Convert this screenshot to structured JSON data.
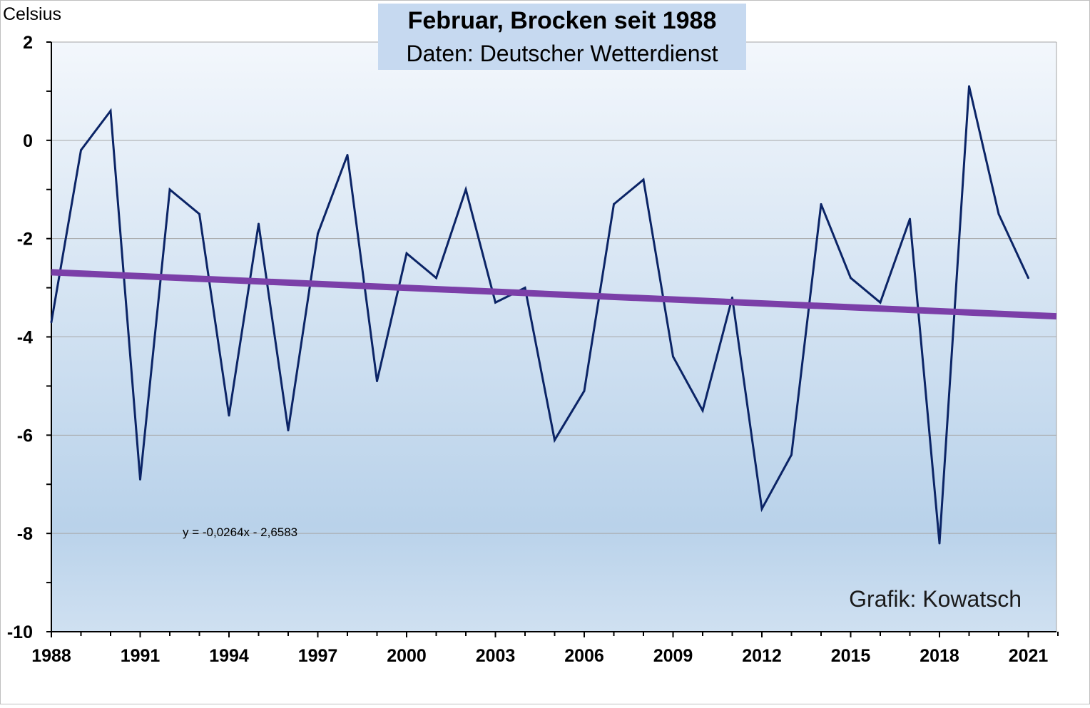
{
  "chart_data": {
    "type": "line",
    "title": "Februar, Brocken seit 1988",
    "subtitle": "Daten: Deutscher Wetterdienst",
    "ylabel": "Celsius",
    "xlabel": "",
    "credit": "Grafik: Kowatsch",
    "x_tick_labels": [
      "1988",
      "1991",
      "1994",
      "1997",
      "2000",
      "2003",
      "2006",
      "2009",
      "2012",
      "2015",
      "2018",
      "2021"
    ],
    "y_tick_labels": [
      "2",
      "0",
      "-2",
      "-4",
      "-6",
      "-8",
      "-10"
    ],
    "ylim": [
      -10,
      2
    ],
    "xlim": [
      1988,
      2022
    ],
    "grid": true,
    "series": [
      {
        "x": [
          1988,
          1989,
          1990,
          1991,
          1992,
          1993,
          1994,
          1995,
          1996,
          1997,
          1998,
          1999,
          2000,
          2001,
          2002,
          2003,
          2004,
          2005,
          2006,
          2007,
          2008,
          2009,
          2010,
          2011,
          2012,
          2013,
          2014,
          2015,
          2016,
          2017,
          2018,
          2019,
          2020,
          2021
        ],
        "values": [
          -3.7,
          -0.2,
          0.6,
          -6.9,
          -1.0,
          -1.5,
          -5.6,
          -1.7,
          -5.9,
          -1.9,
          -0.3,
          -4.9,
          -2.3,
          -2.8,
          -1.0,
          -3.3,
          -3.0,
          -6.1,
          -5.1,
          -1.3,
          -0.8,
          -4.4,
          -5.5,
          -3.2,
          -7.5,
          -6.4,
          -1.3,
          -2.8,
          -3.3,
          -1.6,
          -8.2,
          1.1,
          -1.5,
          -2.8
        ],
        "color": "#0b2466"
      }
    ],
    "trendline": {
      "equation": "y = -0,0264x - 2,6583",
      "slope": -0.0264,
      "intercept": -2.6583,
      "color": "#7b3fa8"
    },
    "colors": {
      "plot_bg_top": "#f3f7fc",
      "plot_bg_bottom": "#b9d2ea",
      "title_box": "#c6d9f0"
    }
  }
}
